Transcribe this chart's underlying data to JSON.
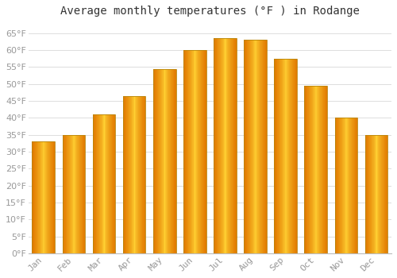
{
  "title": "Average monthly temperatures (°F ) in Rodange",
  "months": [
    "Jan",
    "Feb",
    "Mar",
    "Apr",
    "May",
    "Jun",
    "Jul",
    "Aug",
    "Sep",
    "Oct",
    "Nov",
    "Dec"
  ],
  "values": [
    33,
    35,
    41,
    46.5,
    54.5,
    60,
    63.5,
    63,
    57.5,
    49.5,
    40,
    35
  ],
  "bar_color_main": "#FFA500",
  "bar_color_light": "#FFD050",
  "bar_color_dark": "#E07800",
  "bar_edge_color": "#B8860B",
  "background_color": "#FFFFFF",
  "grid_color": "#DDDDDD",
  "ylim": [
    0,
    68
  ],
  "yticks": [
    0,
    5,
    10,
    15,
    20,
    25,
    30,
    35,
    40,
    45,
    50,
    55,
    60,
    65
  ],
  "title_fontsize": 10,
  "tick_fontsize": 8,
  "tick_font_color": "#999999",
  "title_color": "#333333"
}
